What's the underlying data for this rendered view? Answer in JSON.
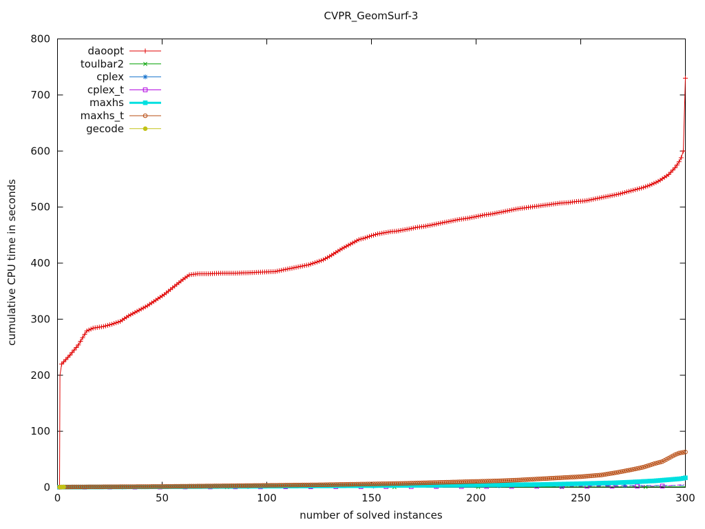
{
  "window": {
    "title": "CVPR_GeomSurf-3"
  },
  "chart_data": {
    "type": "line",
    "title": "CVPR_GeomSurf-3",
    "xlabel": "number of solved instances",
    "ylabel": "cumulative CPU time in seconds",
    "xlim": [
      0,
      300
    ],
    "ylim": [
      0,
      800
    ],
    "xticks": [
      0,
      50,
      100,
      150,
      200,
      250,
      300
    ],
    "yticks": [
      0,
      100,
      200,
      300,
      400,
      500,
      600,
      700,
      800
    ],
    "grid": false,
    "legend_position": "top-left-inside",
    "axis_color": "#000000",
    "series": [
      {
        "name": "daoopt",
        "color": "#e00000",
        "marker": "plus",
        "marker_step": 1,
        "line_width": 1,
        "dash": null,
        "points": [
          [
            1,
            3
          ],
          [
            1.2,
            200
          ],
          [
            2,
            220
          ],
          [
            4,
            228
          ],
          [
            6,
            236
          ],
          [
            8,
            245
          ],
          [
            10,
            254
          ],
          [
            12,
            267
          ],
          [
            14,
            279
          ],
          [
            17,
            284
          ],
          [
            22,
            287
          ],
          [
            26,
            291
          ],
          [
            30,
            296
          ],
          [
            34,
            306
          ],
          [
            38,
            314
          ],
          [
            43,
            324
          ],
          [
            47,
            334
          ],
          [
            51,
            344
          ],
          [
            56,
            359
          ],
          [
            60,
            371
          ],
          [
            63,
            379
          ],
          [
            67,
            381
          ],
          [
            72,
            381
          ],
          [
            78,
            382
          ],
          [
            85,
            382
          ],
          [
            92,
            383
          ],
          [
            98,
            384
          ],
          [
            104,
            385
          ],
          [
            108,
            388
          ],
          [
            112,
            391
          ],
          [
            116,
            394
          ],
          [
            120,
            397
          ],
          [
            124,
            402
          ],
          [
            127,
            406
          ],
          [
            130,
            412
          ],
          [
            133,
            419
          ],
          [
            136,
            426
          ],
          [
            139,
            432
          ],
          [
            142,
            438
          ],
          [
            144,
            442
          ],
          [
            147,
            445
          ],
          [
            150,
            449
          ],
          [
            153,
            452
          ],
          [
            156,
            454
          ],
          [
            159,
            456
          ],
          [
            162,
            457
          ],
          [
            165,
            459
          ],
          [
            168,
            461
          ],
          [
            172,
            464
          ],
          [
            176,
            466
          ],
          [
            180,
            469
          ],
          [
            184,
            472
          ],
          [
            188,
            475
          ],
          [
            192,
            478
          ],
          [
            196,
            480
          ],
          [
            200,
            483
          ],
          [
            204,
            486
          ],
          [
            208,
            488
          ],
          [
            212,
            491
          ],
          [
            216,
            494
          ],
          [
            220,
            497
          ],
          [
            224,
            499
          ],
          [
            228,
            501
          ],
          [
            232,
            503
          ],
          [
            236,
            505
          ],
          [
            240,
            507
          ],
          [
            244,
            508
          ],
          [
            248,
            510
          ],
          [
            252,
            511
          ],
          [
            256,
            514
          ],
          [
            260,
            517
          ],
          [
            264,
            520
          ],
          [
            268,
            523
          ],
          [
            272,
            527
          ],
          [
            276,
            531
          ],
          [
            280,
            535
          ],
          [
            283,
            539
          ],
          [
            286,
            544
          ],
          [
            288,
            548
          ],
          [
            290,
            553
          ],
          [
            292,
            558
          ],
          [
            293,
            562
          ],
          [
            294,
            566
          ],
          [
            295,
            570
          ],
          [
            296,
            575
          ],
          [
            297,
            581
          ],
          [
            298,
            588
          ],
          [
            299,
            600
          ],
          [
            300,
            730
          ]
        ]
      },
      {
        "name": "toulbar2",
        "color": "#00a000",
        "marker": "cross",
        "marker_step": 40,
        "line_width": 1,
        "dash": null,
        "points": [
          [
            1,
            0.1
          ],
          [
            100,
            0.3
          ],
          [
            200,
            0.5
          ],
          [
            300,
            0.8
          ]
        ]
      },
      {
        "name": "cplex",
        "color": "#1874cd",
        "marker": "star",
        "marker_step": 30,
        "line_width": 1,
        "dash": "7,5",
        "points": [
          [
            1,
            0.3
          ],
          [
            60,
            1
          ],
          [
            120,
            1.8
          ],
          [
            180,
            2.4
          ],
          [
            240,
            3
          ],
          [
            300,
            3.5
          ]
        ]
      },
      {
        "name": "cplex_t",
        "color": "#b000e0",
        "marker": "square-open",
        "marker_step": 12,
        "line_width": 1,
        "dash": "6,3,1,3",
        "points": [
          [
            1,
            0.2
          ],
          [
            60,
            0.6
          ],
          [
            120,
            1
          ],
          [
            180,
            1.4
          ],
          [
            240,
            1.8
          ],
          [
            290,
            2.2
          ],
          [
            300,
            5
          ]
        ]
      },
      {
        "name": "maxhs",
        "color": "#00e0e0",
        "marker": "square-filled",
        "marker_step": 1,
        "line_width": 3,
        "dash": null,
        "points": [
          [
            1,
            0.3
          ],
          [
            50,
            1
          ],
          [
            100,
            2
          ],
          [
            150,
            3
          ],
          [
            200,
            4
          ],
          [
            230,
            5
          ],
          [
            250,
            6.5
          ],
          [
            265,
            8
          ],
          [
            275,
            9.5
          ],
          [
            285,
            11.5
          ],
          [
            290,
            13
          ],
          [
            295,
            14.5
          ],
          [
            298,
            15.5
          ],
          [
            300,
            17
          ]
        ]
      },
      {
        "name": "maxhs_t",
        "color": "#b84c12",
        "marker": "circle-open",
        "marker_step": 1,
        "line_width": 1,
        "dash": null,
        "points": [
          [
            1,
            0.5
          ],
          [
            25,
            1
          ],
          [
            50,
            1.5
          ],
          [
            75,
            2.5
          ],
          [
            100,
            3.5
          ],
          [
            125,
            4.5
          ],
          [
            150,
            6
          ],
          [
            165,
            7
          ],
          [
            180,
            8.5
          ],
          [
            195,
            10
          ],
          [
            210,
            11.5
          ],
          [
            220,
            13
          ],
          [
            230,
            15
          ],
          [
            240,
            17
          ],
          [
            250,
            19
          ],
          [
            260,
            22
          ],
          [
            268,
            27
          ],
          [
            275,
            32
          ],
          [
            280,
            36
          ],
          [
            285,
            42
          ],
          [
            289,
            46
          ],
          [
            292,
            52
          ],
          [
            295,
            58
          ],
          [
            297,
            61
          ],
          [
            299,
            62.5
          ],
          [
            300,
            63
          ]
        ]
      },
      {
        "name": "gecode",
        "color": "#c2c216",
        "marker": "circle-filled",
        "marker_step": 1,
        "line_width": 1,
        "dash": null,
        "points": [
          [
            1,
            0.2
          ],
          [
            2,
            0.4
          ],
          [
            3,
            0.7
          ]
        ]
      }
    ]
  }
}
